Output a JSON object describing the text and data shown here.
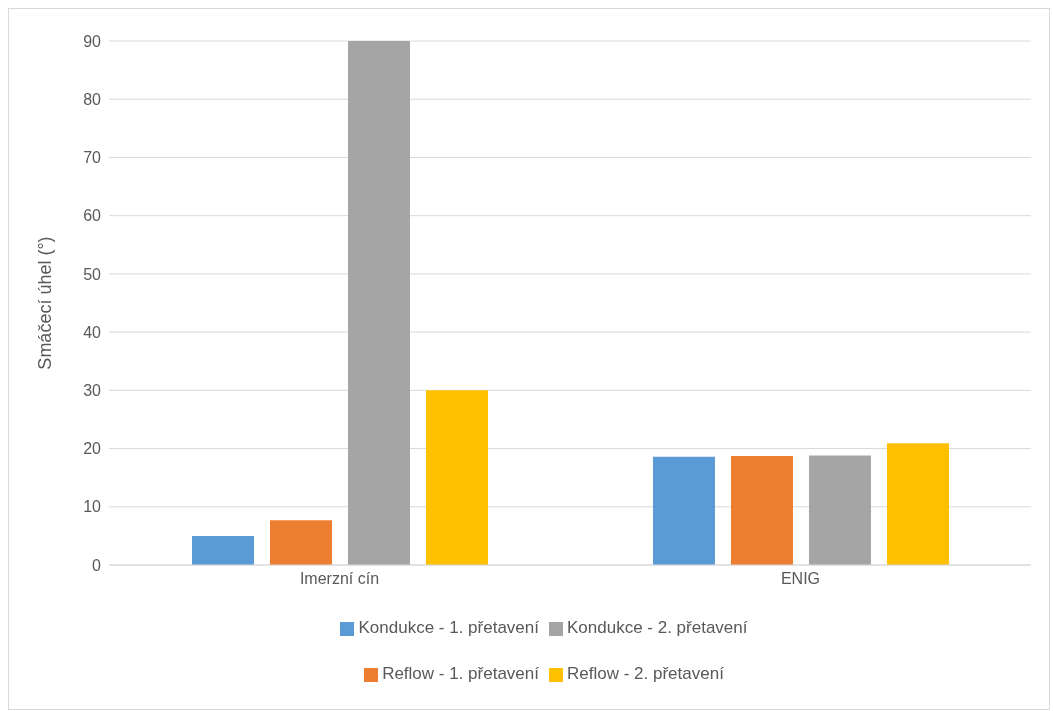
{
  "chart_data": {
    "type": "bar",
    "ylabel": "Smáčecí úhel (°)",
    "categories": [
      "Imerzní cín",
      "ENIG"
    ],
    "series": [
      {
        "name": "Kondukce - 1. přetavení",
        "color": "#5b9bd5",
        "values": [
          5,
          18.6
        ]
      },
      {
        "name": "Reflow - 1. přetavení",
        "color": "#ed7d31",
        "values": [
          7.7,
          18.7
        ]
      },
      {
        "name": "Kondukce - 2. přetavení",
        "color": "#a5a5a5",
        "values": [
          90,
          18.8
        ]
      },
      {
        "name": "Reflow - 2. přetavení",
        "color": "#ffc000",
        "values": [
          30,
          20.9
        ]
      }
    ],
    "ylim": [
      0,
      90
    ],
    "yticks": [
      0,
      10,
      20,
      30,
      40,
      50,
      60,
      70,
      80,
      90
    ],
    "grid": "y",
    "legend": "bottom"
  }
}
